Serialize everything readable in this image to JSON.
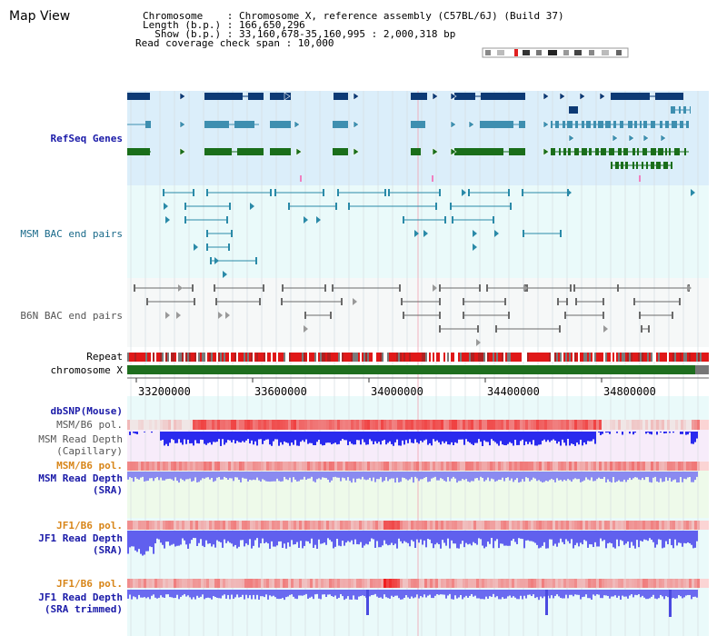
{
  "title": "Map View",
  "info": {
    "chromosome": "Chromosome    : Chromosome X, reference assembly (C57BL/6J) (Build 37)",
    "length": "Length (b.p.) : 166,650,296",
    "show": "  Show (b.p.) : 33,160,678-35,160,995 : 2,000,318 bp",
    "coverage": "Read coverage check span : 10,000"
  },
  "tracks": {
    "refseq": "RefSeq Genes",
    "msm_bac": "MSM BAC end pairs",
    "b6n_bac": "B6N BAC end pairs",
    "repeat": "Repeat",
    "chromosome": "chromosome X",
    "dbsnp": "dbSNP(Mouse)",
    "msm_pol_1": "MSM/B6 pol.",
    "msm_depth_cap_1": "MSM Read Depth",
    "msm_depth_cap_2": "(Capillary)",
    "msm_pol_2": "MSM/B6 pol.",
    "msm_depth_sra_1": "MSM Read Depth",
    "msm_depth_sra_2": "(SRA)",
    "jf1_pol_1": "JF1/B6 pol.",
    "jf1_depth_sra_1": "JF1 Read Depth",
    "jf1_depth_sra_2": "(SRA)",
    "jf1_pol_2": "JF1/B6 pol.",
    "jf1_depth_trim_1": "JF1 Read Depth",
    "jf1_depth_trim_2": "(SRA trimmed)"
  },
  "ticks": [
    "33200000",
    "33600000",
    "34000000",
    "34400000",
    "34800000"
  ],
  "colors": {
    "refseq_bg": "#dbeefa",
    "bac_bg": "#eafafa",
    "b6n_bg": "#f4f6f6",
    "gene_dark": "#0d3a75",
    "gene_mid": "#3e8fb0",
    "gene_green": "#1a6e1a",
    "chromosome_green": "#1e6e1e",
    "pol_red": "#e62222",
    "depth_blue": "#2222ee",
    "msm_cap_bg": "#f6eafa",
    "msm_sra_bg": "#eefaea",
    "jf1_bg": "#eafafa"
  }
}
